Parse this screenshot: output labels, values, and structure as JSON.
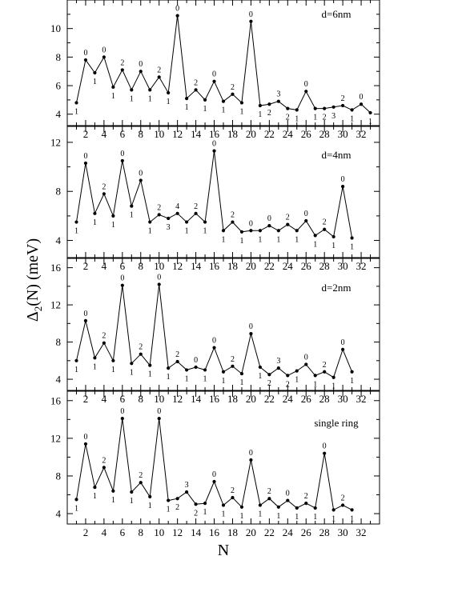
{
  "chart_data": [
    {
      "type": "line",
      "title": "d=6nm",
      "x": [
        1,
        2,
        3,
        4,
        5,
        6,
        7,
        8,
        9,
        10,
        11,
        12,
        13,
        14,
        15,
        16,
        17,
        18,
        19,
        20,
        21,
        22,
        23,
        24,
        25,
        26,
        27,
        28,
        29,
        30,
        31,
        32,
        33
      ],
      "values": [
        4.8,
        7.8,
        6.9,
        8.0,
        5.9,
        7.1,
        5.7,
        7.0,
        5.7,
        6.6,
        5.5,
        10.9,
        5.1,
        5.7,
        5.0,
        6.3,
        4.9,
        5.4,
        4.8,
        10.5,
        4.6,
        4.7,
        4.9,
        4.4,
        4.3,
        5.6,
        4.4,
        4.4,
        4.5,
        4.6,
        4.3,
        4.7,
        4.1
      ],
      "annotations": [
        "1",
        "0",
        "1",
        "0",
        "1",
        "2",
        "1",
        "0",
        "1",
        "2",
        "1",
        "0",
        "1",
        "2",
        "1",
        "0",
        "1",
        "2",
        "1",
        "0",
        "1",
        "2",
        "3",
        "2",
        "1",
        "0",
        "1",
        "2",
        "3",
        "2",
        "1",
        "0",
        "1"
      ],
      "ylim": [
        3.2,
        12.0
      ],
      "yticks": [
        4,
        6,
        8,
        10
      ],
      "xticks": [
        2,
        4,
        6,
        8,
        10,
        12,
        14,
        16,
        18,
        20,
        22,
        24,
        26,
        28,
        30,
        32
      ],
      "xlim": [
        0,
        34
      ]
    },
    {
      "type": "line",
      "title": "d=4nm",
      "x": [
        1,
        2,
        3,
        4,
        5,
        6,
        7,
        8,
        9,
        10,
        11,
        12,
        13,
        14,
        15,
        16,
        17,
        18,
        19,
        20,
        21,
        22,
        23,
        24,
        25,
        26,
        27,
        28,
        29,
        30,
        31
      ],
      "values": [
        5.5,
        10.3,
        6.2,
        7.8,
        6.0,
        10.5,
        6.8,
        8.9,
        5.5,
        6.1,
        5.8,
        6.2,
        5.5,
        6.2,
        5.5,
        11.3,
        4.8,
        5.5,
        4.7,
        4.8,
        4.8,
        5.2,
        4.8,
        5.3,
        4.8,
        5.6,
        4.4,
        4.9,
        4.3,
        8.4,
        4.2
      ],
      "annotations": [
        "1",
        "0",
        "1",
        "2",
        "1",
        "0",
        "1",
        "0",
        "1",
        "2",
        "3",
        "4",
        "1",
        "2",
        "1",
        "0",
        "1",
        "2",
        "1",
        "0",
        "1",
        "0",
        "1",
        "2",
        "1",
        "0",
        "1",
        "2",
        "1",
        "0",
        "1"
      ],
      "ylim": [
        2.6,
        13.3
      ],
      "yticks": [
        4,
        8,
        12
      ],
      "xticks": [
        2,
        4,
        6,
        8,
        10,
        12,
        14,
        16,
        18,
        20,
        22,
        24,
        26,
        28,
        30,
        32
      ],
      "xlim": [
        0,
        34
      ]
    },
    {
      "type": "line",
      "title": "d=2nm",
      "x": [
        1,
        2,
        3,
        4,
        5,
        6,
        7,
        8,
        9,
        10,
        11,
        12,
        13,
        14,
        15,
        16,
        17,
        18,
        19,
        20,
        21,
        22,
        23,
        24,
        25,
        26,
        27,
        28,
        29,
        30,
        31
      ],
      "values": [
        6.0,
        10.3,
        6.3,
        7.9,
        6.0,
        14.1,
        5.7,
        6.7,
        5.5,
        14.2,
        5.2,
        5.9,
        5.0,
        5.3,
        5.0,
        7.4,
        4.8,
        5.4,
        4.6,
        8.9,
        5.3,
        4.5,
        5.2,
        4.4,
        4.9,
        5.6,
        4.4,
        4.8,
        4.2,
        7.2,
        4.8
      ],
      "annotations": [
        "1",
        "0",
        "1",
        "2",
        "1",
        "0",
        "1",
        "2",
        "1",
        "0",
        "1",
        "2",
        "1",
        "0",
        "1",
        "0",
        "1",
        "2",
        "1",
        "0",
        "1",
        "2",
        "3",
        "2",
        "1",
        "0",
        "1",
        "2",
        "1",
        "0",
        "1"
      ],
      "ylim": [
        2.8,
        17.0
      ],
      "yticks": [
        4,
        8,
        12,
        16
      ],
      "xticks": [
        2,
        4,
        6,
        8,
        10,
        12,
        14,
        16,
        18,
        20,
        22,
        24,
        26,
        28,
        30,
        32
      ],
      "xlim": [
        0,
        34
      ]
    },
    {
      "type": "line",
      "title": "single ring",
      "x": [
        1,
        2,
        3,
        4,
        5,
        6,
        7,
        8,
        9,
        10,
        11,
        12,
        13,
        14,
        15,
        16,
        17,
        18,
        19,
        20,
        21,
        22,
        23,
        24,
        25,
        26,
        27,
        28,
        29,
        30,
        31
      ],
      "values": [
        5.5,
        11.4,
        6.8,
        8.9,
        6.4,
        14.1,
        6.3,
        7.3,
        5.8,
        14.1,
        5.4,
        5.6,
        6.3,
        5.0,
        5.1,
        7.4,
        4.9,
        5.7,
        4.7,
        9.7,
        4.9,
        5.6,
        4.7,
        5.4,
        4.6,
        5.1,
        4.6,
        10.4,
        4.4,
        4.9,
        4.4
      ],
      "annotations": [
        "1",
        "0",
        "1",
        "2",
        "1",
        "0",
        "1",
        "2",
        "1",
        "0",
        "1",
        "2",
        "3",
        "2",
        "1",
        "0",
        "1",
        "2",
        "1",
        "0",
        "1",
        "2",
        "1",
        "0",
        "1",
        "2",
        "1",
        "0",
        "1",
        "2",
        "1"
      ],
      "ylim": [
        2.9,
        17.0
      ],
      "yticks": [
        4,
        8,
        12,
        16
      ],
      "xticks": [
        2,
        4,
        6,
        8,
        10,
        12,
        14,
        16,
        18,
        20,
        22,
        24,
        26,
        28,
        30,
        32
      ],
      "xlim": [
        0,
        34
      ]
    }
  ],
  "axis_labels": {
    "ylabel_delta": "Δ",
    "ylabel_sub": "2",
    "ylabel_rest": "(N) (meV)",
    "xlabel": "N"
  }
}
